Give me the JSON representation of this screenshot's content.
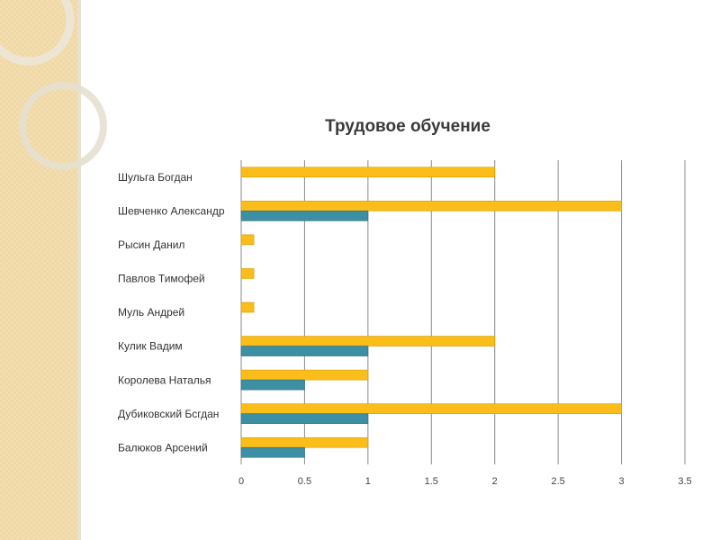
{
  "chart_data": {
    "type": "bar",
    "orientation": "horizontal",
    "title": "Трудовое обучение",
    "xlabel": "",
    "ylabel": "",
    "categories": [
      "Шульга Богдан",
      "Шевченко Александр",
      "Рысин Данил",
      "Павлов Тимофей",
      "Муль Андрей",
      "Кулик Вадим",
      "Королева Наталья",
      "Дубиковский Бсгдан",
      "Балюков Арсений"
    ],
    "series": [
      {
        "color": "#fbbd1a",
        "values": [
          2,
          3,
          0.1,
          0.1,
          0.1,
          2,
          1,
          3,
          1
        ]
      },
      {
        "color": "#3d8fa3",
        "values": [
          0,
          1,
          0,
          0,
          0,
          1,
          0.5,
          1,
          0.5
        ]
      }
    ],
    "xlim": [
      0,
      3.5
    ],
    "x_ticks": [
      "0",
      "0.5",
      "1",
      "1.5",
      "2",
      "2.5",
      "3",
      "3.5"
    ],
    "grid": true,
    "legend": "none"
  },
  "theme": {
    "background_panel": "#f3deb0",
    "accent_ring": "#e9e3d4"
  }
}
